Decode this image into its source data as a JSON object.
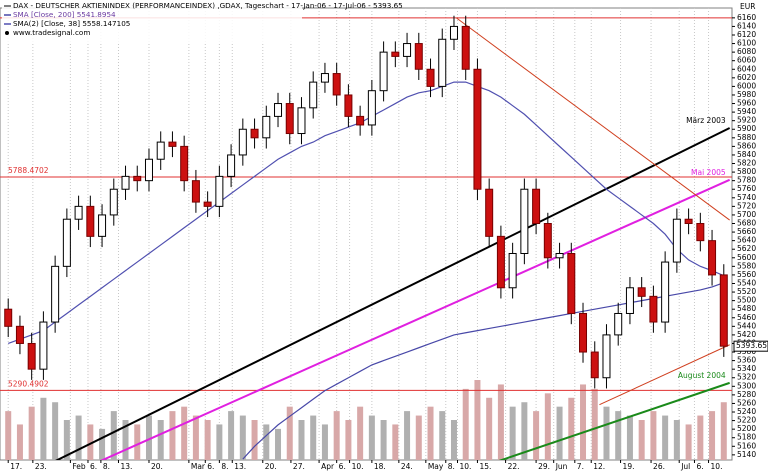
{
  "chart_data": {
    "type": "candlestick",
    "title": "DAX - DEUTSCHER AKTIENINDEX (PERFORMANCEINDEX) ,GDAX, Tageschart - 17-Jan-06 - 17-Jul-06 - 5393.65",
    "source": "www.tradesignal.com",
    "y_unit": "EUR",
    "up_color": "#ffffff",
    "down_color": "#cc1010",
    "open": [
      5480,
      5440,
      5400,
      5340,
      5450,
      5580,
      5690,
      5720,
      5650,
      5700,
      5760,
      5790,
      5780,
      5830,
      5870,
      5860,
      5780,
      5730,
      5720,
      5790,
      5840,
      5900,
      5880,
      5930,
      5960,
      5890,
      5950,
      6010,
      6030,
      5980,
      5930,
      5910,
      5990,
      6080,
      6070,
      6100,
      6040,
      6000,
      6110,
      6140,
      6040,
      5760,
      5650,
      5530,
      5610,
      5760,
      5680,
      5600,
      5610,
      5470,
      5380,
      5320,
      5420,
      5470,
      5530,
      5510,
      5450,
      5590,
      5690,
      5680,
      5640,
      5560
    ],
    "high": [
      5505,
      5465,
      5425,
      5475,
      5605,
      5715,
      5745,
      5745,
      5725,
      5785,
      5815,
      5815,
      5855,
      5895,
      5895,
      5885,
      5805,
      5755,
      5815,
      5865,
      5925,
      5925,
      5955,
      5985,
      5985,
      5975,
      6035,
      6055,
      6055,
      6005,
      5955,
      6015,
      6105,
      6105,
      6125,
      6125,
      6065,
      6135,
      6165,
      6165,
      6065,
      5785,
      5675,
      5635,
      5785,
      5785,
      5705,
      5635,
      5635,
      5495,
      5405,
      5445,
      5495,
      5555,
      5555,
      5535,
      5615,
      5715,
      5715,
      5705,
      5665,
      5585
    ],
    "low": [
      5415,
      5375,
      5315,
      5315,
      5425,
      5555,
      5665,
      5625,
      5625,
      5675,
      5735,
      5755,
      5755,
      5805,
      5835,
      5755,
      5705,
      5695,
      5695,
      5765,
      5815,
      5855,
      5855,
      5905,
      5865,
      5865,
      5925,
      5985,
      5955,
      5905,
      5885,
      5885,
      5965,
      6045,
      6045,
      6015,
      5975,
      5975,
      6085,
      6015,
      5735,
      5625,
      5505,
      5505,
      5585,
      5655,
      5575,
      5575,
      5445,
      5355,
      5295,
      5295,
      5395,
      5445,
      5485,
      5425,
      5425,
      5565,
      5655,
      5615,
      5535,
      5368.65
    ],
    "close": [
      5440,
      5400,
      5340,
      5450,
      5580,
      5690,
      5720,
      5650,
      5700,
      5760,
      5790,
      5780,
      5830,
      5870,
      5860,
      5780,
      5730,
      5720,
      5790,
      5840,
      5900,
      5880,
      5930,
      5960,
      5890,
      5950,
      6010,
      6030,
      5980,
      5930,
      5910,
      5990,
      6080,
      6070,
      6100,
      6040,
      6000,
      6110,
      6140,
      6040,
      5760,
      5650,
      5530,
      5610,
      5760,
      5680,
      5600,
      5610,
      5470,
      5380,
      5320,
      5420,
      5470,
      5530,
      5510,
      5450,
      5590,
      5690,
      5680,
      5640,
      5560,
      5393.65
    ],
    "volume": [
      55,
      40,
      60,
      70,
      65,
      45,
      50,
      40,
      35,
      55,
      45,
      40,
      50,
      45,
      55,
      60,
      50,
      45,
      40,
      55,
      50,
      45,
      40,
      35,
      60,
      45,
      50,
      40,
      55,
      45,
      60,
      50,
      45,
      40,
      55,
      50,
      60,
      55,
      45,
      80,
      90,
      70,
      85,
      60,
      65,
      55,
      75,
      60,
      70,
      85,
      80,
      60,
      55,
      50,
      45,
      55,
      50,
      45,
      40,
      50,
      55,
      65
    ],
    "series": [
      {
        "name": "SMA [Close, 200] 5541.8954",
        "color": "#4848a8",
        "values": [
          null,
          null,
          null,
          null,
          null,
          null,
          null,
          null,
          null,
          null,
          null,
          null,
          null,
          null,
          null,
          null,
          null,
          null,
          null,
          null,
          5130,
          5160,
          5185,
          5210,
          5230,
          5250,
          5270,
          5290,
          5305,
          5320,
          5335,
          5350,
          5360,
          5370,
          5380,
          5390,
          5400,
          5410,
          5420,
          5425,
          5430,
          5435,
          5440,
          5445,
          5450,
          5455,
          5460,
          5465,
          5470,
          5475,
          5480,
          5485,
          5490,
          5495,
          5500,
          5505,
          5510,
          5515,
          5520,
          5525,
          5532,
          5541.8954
        ]
      },
      {
        "name": "SMA(2) [Close, 38] 5558.147105",
        "color": "#5050b0",
        "values": [
          5400,
          5410,
          5420,
          5430,
          5450,
          5470,
          5490,
          5510,
          5530,
          5550,
          5570,
          5590,
          5610,
          5630,
          5650,
          5670,
          5690,
          5710,
          5730,
          5750,
          5770,
          5790,
          5810,
          5830,
          5845,
          5860,
          5870,
          5885,
          5895,
          5905,
          5915,
          5930,
          5945,
          5960,
          5975,
          5985,
          5990,
          6000,
          6010,
          6010,
          6000,
          5990,
          5975,
          5955,
          5935,
          5910,
          5885,
          5860,
          5835,
          5810,
          5785,
          5760,
          5740,
          5720,
          5700,
          5680,
          5655,
          5620,
          5595,
          5580,
          5570,
          5558.147105
        ]
      }
    ],
    "trendlines": [
      {
        "label": "März 2003",
        "color": "#000000",
        "width": 2,
        "points": [
          [
            3.6,
            5120
          ],
          [
            61.5,
            5903
          ]
        ]
      },
      {
        "label": "Mai 2005",
        "color": "#e020e0",
        "width": 2,
        "points": [
          [
            7.4,
            5120
          ],
          [
            61.5,
            5782
          ]
        ]
      },
      {
        "label": "August 2004",
        "color": "#1a8a1a",
        "width": 2,
        "points": [
          [
            41.2,
            5120
          ],
          [
            61.5,
            5308
          ]
        ]
      },
      {
        "color": "#d04020",
        "width": 1,
        "points": [
          [
            38.2,
            6160
          ],
          [
            61.5,
            5688
          ]
        ]
      },
      {
        "color": "#d04020",
        "width": 1,
        "points": [
          [
            50.4,
            5257
          ],
          [
            61.5,
            5397
          ]
        ]
      }
    ],
    "hlines": [
      {
        "value": 6160
      },
      {
        "value": 5788.4702,
        "label": "5788.4702"
      },
      {
        "value": 5290.4902,
        "label": "5290.4902"
      }
    ],
    "hline_color": "#e03030",
    "xlim": [
      -0.7,
      61.7
    ],
    "xticks": [
      {
        "value": 0,
        "label": "17."
      },
      {
        "value": 2.1,
        "label": "23."
      },
      {
        "value": 5.3,
        "label": "Feb"
      },
      {
        "value": 6.8,
        "label": "6."
      },
      {
        "value": 7.9,
        "label": "8."
      },
      {
        "value": 9.4,
        "label": "13."
      },
      {
        "value": 12.0,
        "label": "20."
      },
      {
        "value": 15.4,
        "label": "Mar"
      },
      {
        "value": 16.8,
        "label": "6."
      },
      {
        "value": 18.0,
        "label": "8."
      },
      {
        "value": 19.1,
        "label": "13."
      },
      {
        "value": 21.7,
        "label": "20."
      },
      {
        "value": 24.1,
        "label": "27."
      },
      {
        "value": 26.5,
        "label": "Apr"
      },
      {
        "value": 28.0,
        "label": "6."
      },
      {
        "value": 29.1,
        "label": "10."
      },
      {
        "value": 31.0,
        "label": "18."
      },
      {
        "value": 33.3,
        "label": "24."
      },
      {
        "value": 35.6,
        "label": "May"
      },
      {
        "value": 37.3,
        "label": "8."
      },
      {
        "value": 38.3,
        "label": "10."
      },
      {
        "value": 40.0,
        "label": "15."
      },
      {
        "value": 42.4,
        "label": "22."
      },
      {
        "value": 45.0,
        "label": "29."
      },
      {
        "value": 46.5,
        "label": "Jun"
      },
      {
        "value": 48.3,
        "label": "7."
      },
      {
        "value": 49.7,
        "label": "12."
      },
      {
        "value": 52.2,
        "label": "19."
      },
      {
        "value": 54.8,
        "label": "26."
      },
      {
        "value": 57.2,
        "label": "Jul"
      },
      {
        "value": 58.5,
        "label": "6."
      },
      {
        "value": 59.7,
        "label": "10."
      }
    ],
    "ylim": [
      5128,
      6183
    ],
    "yticks": [
      5140,
      5160,
      5180,
      5200,
      5220,
      5240,
      5260,
      5280,
      5300,
      5320,
      5340,
      5360,
      5380,
      5400,
      5420,
      5440,
      5460,
      5480,
      5500,
      5520,
      5540,
      5560,
      5580,
      5600,
      5620,
      5640,
      5660,
      5680,
      5700,
      5720,
      5740,
      5760,
      5780,
      5800,
      5820,
      5840,
      5860,
      5880,
      5900,
      5920,
      5940,
      5960,
      5980,
      6000,
      6020,
      6040,
      6060,
      6080,
      6100,
      6120,
      6140,
      6160
    ],
    "grid": true
  }
}
